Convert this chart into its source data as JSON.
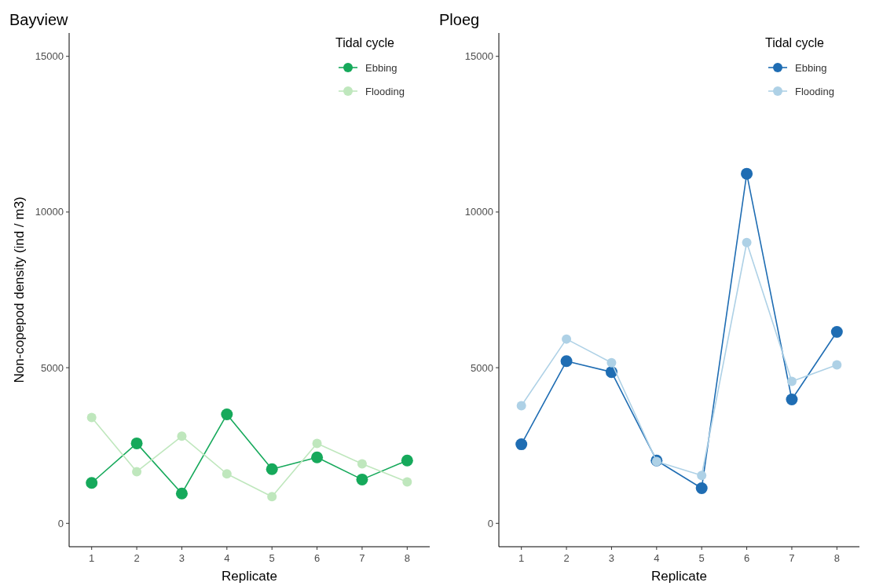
{
  "chart_data": [
    {
      "type": "line",
      "title": "Bayview",
      "xlabel": "Replicate",
      "ylabel": "Non-copepod density (ind / m3)",
      "categories": [
        "1",
        "2",
        "3",
        "4",
        "5",
        "6",
        "7",
        "8"
      ],
      "legend_title": "Tidal cycle",
      "legend": "top right",
      "marker": "circle",
      "grid": false,
      "ylim": [
        -750,
        15750
      ],
      "yticks": [
        0,
        5000,
        10000,
        15000
      ],
      "series": [
        {
          "name": "Ebbing",
          "color": "#16a95b",
          "values": [
            1300,
            2570,
            960,
            3500,
            1740,
            2120,
            1410,
            2020
          ]
        },
        {
          "name": "Flooding",
          "color": "#bfe7bd",
          "values": [
            3400,
            1660,
            2800,
            1590,
            860,
            2570,
            1910,
            1330
          ]
        }
      ]
    },
    {
      "type": "line",
      "title": "Ploeg",
      "xlabel": "Replicate",
      "categories": [
        "1",
        "2",
        "3",
        "4",
        "5",
        "6",
        "7",
        "8"
      ],
      "legend_title": "Tidal cycle",
      "legend": "top right",
      "marker": "circle",
      "grid": false,
      "ylim": [
        -750,
        15750
      ],
      "yticks": [
        0,
        5000,
        10000,
        15000
      ],
      "series": [
        {
          "name": "Ebbing",
          "color": "#1f6db3",
          "values": [
            2540,
            5210,
            4860,
            2020,
            1130,
            11230,
            3980,
            6150
          ]
        },
        {
          "name": "Flooding",
          "color": "#aed1e6",
          "values": [
            3780,
            5920,
            5160,
            1990,
            1540,
            9020,
            4560,
            5090
          ]
        }
      ]
    }
  ]
}
